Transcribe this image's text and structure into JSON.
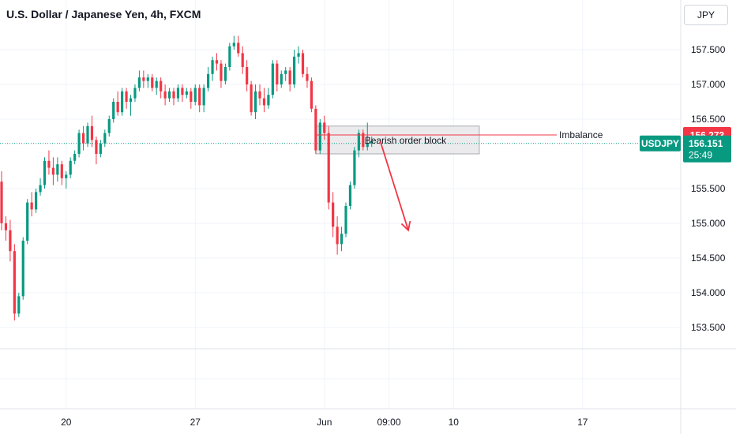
{
  "header": {
    "title": "U.S. Dollar / Japanese Yen, 4h, FXCM",
    "currency": "JPY"
  },
  "chart_data": {
    "type": "candlestick",
    "symbol": "USDJPY",
    "timeframe": "4h",
    "ylim": [
      153.2,
      158.2
    ],
    "y_ticks": [
      "157.500",
      "157.000",
      "156.500",
      "155.500",
      "155.000",
      "154.500",
      "154.000",
      "153.500"
    ],
    "y_tick_values": [
      157.5,
      157.0,
      156.5,
      155.5,
      155.0,
      154.5,
      154.0,
      153.5
    ],
    "x_ticks": [
      {
        "label": "20",
        "index": 15
      },
      {
        "label": "27",
        "index": 45
      },
      {
        "label": "Jun",
        "index": 75
      },
      {
        "label": "09:00",
        "index": 90
      },
      {
        "label": "10",
        "index": 105
      },
      {
        "label": "17",
        "index": 135
      }
    ],
    "candles": [
      [
        155.6,
        155.75,
        154.9,
        155.0
      ],
      [
        155.0,
        155.1,
        154.75,
        154.9
      ],
      [
        154.9,
        155.05,
        154.45,
        154.6
      ],
      [
        154.6,
        154.7,
        153.6,
        153.7
      ],
      [
        153.7,
        154.0,
        153.65,
        153.95
      ],
      [
        153.95,
        154.8,
        153.9,
        154.75
      ],
      [
        154.75,
        155.35,
        154.7,
        155.3
      ],
      [
        155.3,
        155.45,
        155.1,
        155.2
      ],
      [
        155.2,
        155.5,
        155.15,
        155.45
      ],
      [
        155.45,
        155.65,
        155.4,
        155.55
      ],
      [
        155.55,
        155.95,
        155.5,
        155.9
      ],
      [
        155.9,
        156.05,
        155.7,
        155.8
      ],
      [
        155.8,
        155.95,
        155.55,
        155.7
      ],
      [
        155.7,
        155.95,
        155.6,
        155.85
      ],
      [
        155.85,
        155.9,
        155.55,
        155.65
      ],
      [
        155.65,
        155.75,
        155.5,
        155.7
      ],
      [
        155.7,
        155.95,
        155.65,
        155.9
      ],
      [
        155.9,
        156.05,
        155.85,
        156.0
      ],
      [
        156.0,
        156.35,
        155.95,
        156.3
      ],
      [
        156.3,
        156.4,
        156.05,
        156.15
      ],
      [
        156.15,
        156.45,
        156.1,
        156.4
      ],
      [
        156.4,
        156.55,
        156.1,
        156.2
      ],
      [
        156.2,
        156.25,
        155.85,
        156.0
      ],
      [
        156.0,
        156.2,
        155.95,
        156.15
      ],
      [
        156.15,
        156.35,
        156.1,
        156.3
      ],
      [
        156.3,
        156.55,
        156.25,
        156.5
      ],
      [
        156.5,
        156.8,
        156.45,
        156.75
      ],
      [
        156.75,
        156.9,
        156.55,
        156.6
      ],
      [
        156.6,
        156.95,
        156.55,
        156.9
      ],
      [
        156.9,
        156.95,
        156.65,
        156.75
      ],
      [
        156.75,
        156.85,
        156.55,
        156.8
      ],
      [
        156.8,
        157.0,
        156.75,
        156.95
      ],
      [
        156.95,
        157.2,
        156.9,
        157.1
      ],
      [
        157.1,
        157.2,
        156.95,
        157.05
      ],
      [
        157.05,
        157.15,
        156.95,
        157.1
      ],
      [
        157.1,
        157.15,
        156.9,
        156.95
      ],
      [
        156.95,
        157.1,
        156.85,
        157.05
      ],
      [
        157.05,
        157.1,
        156.8,
        156.9
      ],
      [
        156.9,
        157.0,
        156.7,
        156.8
      ],
      [
        156.8,
        156.95,
        156.75,
        156.9
      ],
      [
        156.9,
        156.95,
        156.7,
        156.8
      ],
      [
        156.8,
        157.0,
        156.75,
        156.95
      ],
      [
        156.95,
        157.0,
        156.75,
        156.85
      ],
      [
        156.85,
        156.95,
        156.8,
        156.9
      ],
      [
        156.9,
        156.95,
        156.65,
        156.75
      ],
      [
        156.75,
        157.0,
        156.7,
        156.95
      ],
      [
        156.95,
        157.0,
        156.6,
        156.7
      ],
      [
        156.7,
        157.0,
        156.6,
        156.95
      ],
      [
        156.95,
        157.25,
        156.9,
        157.15
      ],
      [
        157.15,
        157.4,
        157.05,
        157.35
      ],
      [
        157.35,
        157.45,
        157.2,
        157.3
      ],
      [
        157.3,
        157.35,
        156.95,
        157.05
      ],
      [
        157.05,
        157.3,
        157.0,
        157.25
      ],
      [
        157.25,
        157.6,
        157.2,
        157.55
      ],
      [
        157.55,
        157.7,
        157.5,
        157.6
      ],
      [
        157.6,
        157.7,
        157.4,
        157.45
      ],
      [
        157.45,
        157.55,
        157.15,
        157.25
      ],
      [
        157.25,
        157.35,
        156.9,
        157.0
      ],
      [
        157.0,
        157.05,
        156.55,
        156.6
      ],
      [
        156.6,
        157.0,
        156.5,
        156.9
      ],
      [
        156.9,
        157.0,
        156.7,
        156.8
      ],
      [
        156.8,
        156.95,
        156.6,
        156.7
      ],
      [
        156.7,
        156.95,
        156.65,
        156.85
      ],
      [
        156.85,
        157.35,
        156.8,
        157.3
      ],
      [
        157.3,
        157.35,
        156.9,
        157.0
      ],
      [
        157.0,
        157.2,
        156.95,
        157.15
      ],
      [
        157.15,
        157.25,
        157.05,
        157.2
      ],
      [
        157.2,
        157.25,
        156.9,
        157.0
      ],
      [
        157.0,
        157.5,
        156.95,
        157.4
      ],
      [
        157.4,
        157.55,
        157.3,
        157.45
      ],
      [
        157.45,
        157.5,
        157.1,
        157.15
      ],
      [
        157.15,
        157.25,
        156.95,
        157.05
      ],
      [
        157.05,
        157.1,
        156.6,
        156.65
      ],
      [
        156.65,
        156.7,
        156.0,
        156.05
      ],
      [
        156.05,
        156.5,
        156.0,
        156.45
      ],
      [
        156.45,
        156.55,
        156.2,
        156.3
      ],
      [
        156.3,
        156.4,
        155.2,
        155.3
      ],
      [
        155.3,
        155.45,
        154.8,
        154.95
      ],
      [
        154.95,
        155.1,
        154.55,
        154.7
      ],
      [
        154.7,
        154.95,
        154.6,
        154.85
      ],
      [
        154.85,
        155.3,
        154.8,
        155.25
      ],
      [
        155.25,
        155.6,
        155.2,
        155.55
      ],
      [
        155.55,
        156.1,
        155.5,
        156.05
      ],
      [
        156.05,
        156.35,
        155.95,
        156.3
      ],
      [
        156.3,
        156.35,
        156.05,
        156.1
      ],
      [
        156.1,
        156.45,
        156.05,
        156.15
      ],
      [
        156.15,
        156.25,
        156.1,
        156.18
      ]
    ],
    "current_price": 156.151,
    "current_price_label": "156.151",
    "countdown": "25:49",
    "imbalance_price": 156.273,
    "imbalance_price_label": "156.273",
    "annotations": {
      "order_block_label": "Bearish order block",
      "order_block_range": [
        156.0,
        156.4
      ],
      "order_block_index_range": [
        73,
        111
      ],
      "imbalance_label": "Imbalance",
      "imbalance_index_range": [
        73,
        129
      ],
      "arrow_from": {
        "index": 88,
        "price": 156.18
      },
      "arrow_to": {
        "index": 94.5,
        "price": 154.9
      }
    },
    "colors": {
      "up": "#089981",
      "down": "#f23645",
      "grid": "#f0f3fa",
      "axis_text": "#131722",
      "price_line": "#089981",
      "imbalance": "#f23645",
      "order_block_fill": "#e8e8ea",
      "order_block_border": "#9598a1",
      "arrow": "#f23645"
    }
  }
}
